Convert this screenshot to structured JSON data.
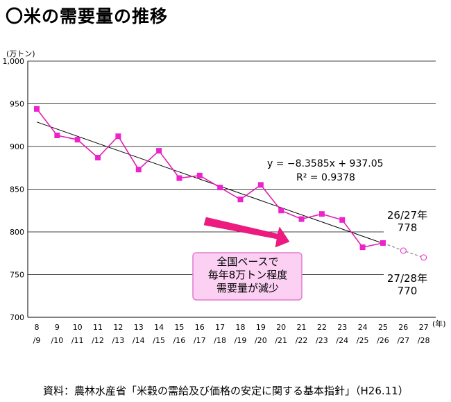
{
  "title": "〇米の需要量の推移",
  "source": "資料：農林水産省「米穀の需給及び価格の安定に関する基本指針」（H26.11）",
  "colors": {
    "series": "#e020b0",
    "marker": "#ee22cc",
    "trend": "#000000",
    "arrow": "#ee1a80",
    "callout_fill": "#fbd0f2",
    "callout_border": "#e27ad0"
  },
  "chart_data": {
    "type": "line",
    "y_unit_label": "(万トン)",
    "x_unit_label": "(年)",
    "ylim": [
      700,
      1000
    ],
    "y_ticks": [
      "1,000",
      "950",
      "900",
      "850",
      "800",
      "750",
      "700"
    ],
    "y_tick_values": [
      1000,
      950,
      900,
      850,
      800,
      750,
      700
    ],
    "x_tick_labels": [
      [
        "8",
        "/9"
      ],
      [
        "9",
        "/10"
      ],
      [
        "10",
        "/11"
      ],
      [
        "11",
        "/12"
      ],
      [
        "12",
        "/13"
      ],
      [
        "13",
        "/14"
      ],
      [
        "14",
        "/15"
      ],
      [
        "15",
        "/16"
      ],
      [
        "16",
        "/17"
      ],
      [
        "17",
        "/18"
      ],
      [
        "18",
        "/19"
      ],
      [
        "19",
        "/20"
      ],
      [
        "20",
        "/21"
      ],
      [
        "21",
        "/22"
      ],
      [
        "22",
        "/23"
      ],
      [
        "23",
        "/24"
      ],
      [
        "24",
        "/25"
      ],
      [
        "25",
        "/26"
      ],
      [
        "26",
        "/27"
      ],
      [
        "27",
        "/28"
      ]
    ],
    "series": [
      {
        "values": [
          944,
          913,
          908,
          887,
          912,
          873,
          895,
          863,
          866,
          852,
          838,
          855,
          825,
          815,
          821,
          814,
          782,
          787,
          null,
          null
        ]
      },
      {
        "values": [
          null,
          null,
          null,
          null,
          null,
          null,
          null,
          null,
          null,
          null,
          null,
          null,
          null,
          null,
          null,
          null,
          null,
          787,
          778,
          770
        ],
        "style": "dashed-forecast"
      }
    ],
    "trendline": {
      "equation": "y = −8.3585x + 937.05",
      "r2": "R² = 0.9378",
      "slope": -8.3585,
      "intercept": 937.05
    },
    "annotations": [
      {
        "lines": [
          "26/27年",
          "778"
        ]
      },
      {
        "lines": [
          "27/28年",
          "770"
        ]
      }
    ],
    "callout": {
      "lines": [
        "全国ベースで",
        "毎年8万トン程度",
        "需要量が減少"
      ]
    },
    "grid": "horizontal"
  }
}
